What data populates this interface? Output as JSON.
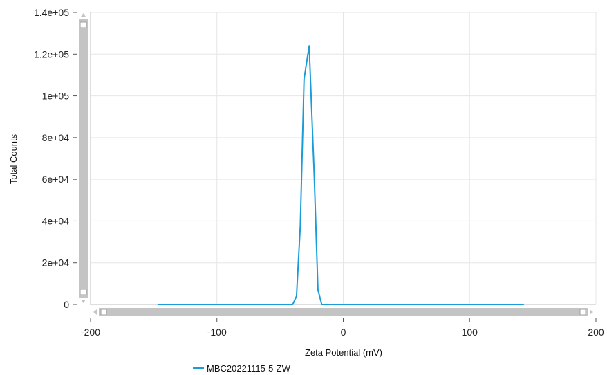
{
  "chart_data": {
    "type": "line",
    "title": "",
    "xlabel": "Zeta Potential (mV)",
    "ylabel": "Total Counts",
    "xlim": [
      -200,
      200
    ],
    "ylim": [
      0,
      140000
    ],
    "x_ticks": [
      -200,
      -100,
      0,
      100,
      200
    ],
    "x_tick_labels": [
      "-200",
      "-100",
      "0",
      "100",
      "200"
    ],
    "y_ticks": [
      0,
      20000,
      40000,
      60000,
      80000,
      100000,
      120000,
      140000
    ],
    "y_tick_labels": [
      "0",
      "2e+04",
      "4e+04",
      "6e+04",
      "8e+04",
      "1e+05",
      "1.2e+05",
      "1.4e+05"
    ],
    "grid": true,
    "legend_position": "bottom-left",
    "series": [
      {
        "name": "MBC20221115-5-ZW",
        "color": "#1a9cd8",
        "x": [
          -147,
          -40,
          -37,
          -34,
          -31,
          -27,
          -23,
          -20,
          -17,
          -14,
          143
        ],
        "y": [
          0,
          0,
          4000,
          38000,
          108000,
          124000,
          62000,
          7000,
          0,
          0,
          0
        ]
      }
    ]
  },
  "scrollbars": {
    "vertical": {
      "color": "#c4c4c4"
    },
    "horizontal": {
      "color": "#c4c4c4"
    }
  }
}
